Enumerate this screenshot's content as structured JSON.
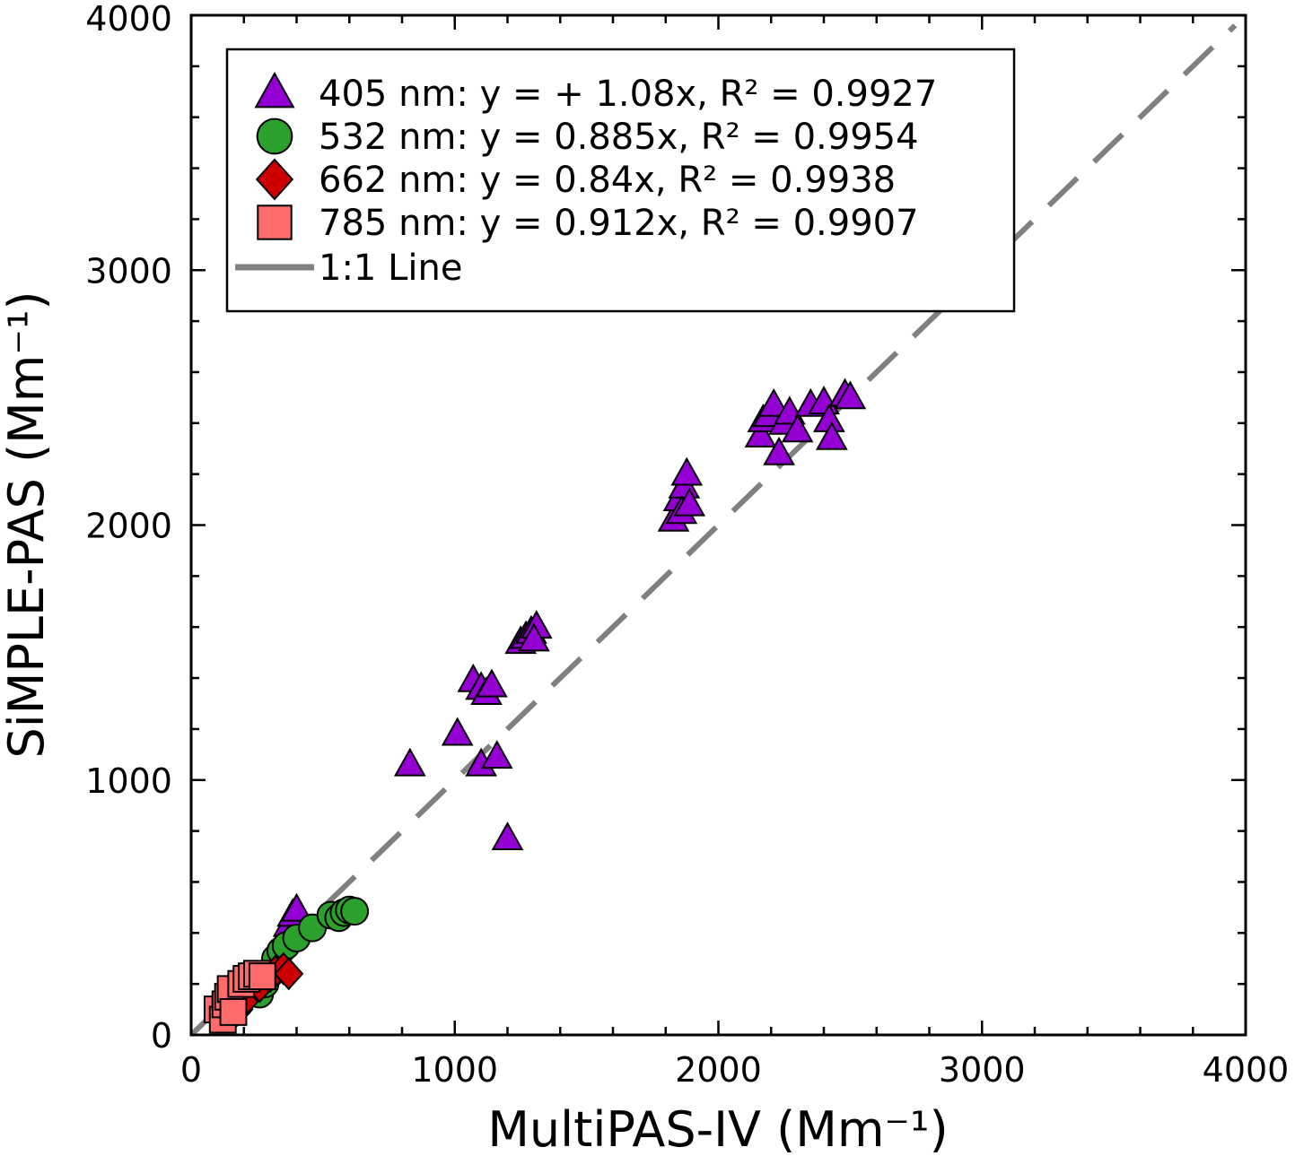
{
  "chart_data": {
    "type": "scatter",
    "xlabel": "MultiPAS-IV (Mm⁻¹)",
    "ylabel": "SiMPLE-PAS (Mm⁻¹)",
    "xlim": [
      0,
      4000
    ],
    "ylim": [
      0,
      4000
    ],
    "xticks": [
      "0",
      "1000",
      "2000",
      "3000",
      "4000"
    ],
    "yticks": [
      "0",
      "1000",
      "2000",
      "3000",
      "4000"
    ],
    "legend_position": "top-left",
    "grid": false,
    "series": [
      {
        "name": "405 nm: y = + 1.08x, R² = 0.9927",
        "marker": "triangle",
        "color": "#9400D3",
        "points": [
          [
            370,
            430
          ],
          [
            385,
            470
          ],
          [
            400,
            490
          ],
          [
            830,
            1060
          ],
          [
            1010,
            1180
          ],
          [
            1070,
            1390
          ],
          [
            1100,
            1360
          ],
          [
            1120,
            1340
          ],
          [
            1140,
            1370
          ],
          [
            1100,
            1060
          ],
          [
            1160,
            1090
          ],
          [
            1200,
            770
          ],
          [
            1250,
            1540
          ],
          [
            1270,
            1560
          ],
          [
            1290,
            1580
          ],
          [
            1310,
            1600
          ],
          [
            1300,
            1550
          ],
          [
            1830,
            2020
          ],
          [
            1850,
            2100
          ],
          [
            1870,
            2150
          ],
          [
            1880,
            2200
          ],
          [
            1860,
            2050
          ],
          [
            1890,
            2080
          ],
          [
            2160,
            2350
          ],
          [
            2170,
            2410
          ],
          [
            2190,
            2430
          ],
          [
            2210,
            2470
          ],
          [
            2230,
            2280
          ],
          [
            2250,
            2400
          ],
          [
            2270,
            2440
          ],
          [
            2300,
            2370
          ],
          [
            2350,
            2470
          ],
          [
            2400,
            2480
          ],
          [
            2420,
            2410
          ],
          [
            2430,
            2340
          ],
          [
            2480,
            2510
          ],
          [
            2500,
            2500
          ]
        ]
      },
      {
        "name": "532 nm: y = 0.885x, R² = 0.9954",
        "marker": "circle",
        "color": "#2CA02C",
        "points": [
          [
            260,
            160
          ],
          [
            280,
            200
          ],
          [
            300,
            240
          ],
          [
            320,
            300
          ],
          [
            340,
            330
          ],
          [
            360,
            350
          ],
          [
            400,
            380
          ],
          [
            460,
            420
          ],
          [
            530,
            470
          ],
          [
            560,
            460
          ],
          [
            580,
            480
          ],
          [
            600,
            490
          ],
          [
            620,
            485
          ]
        ]
      },
      {
        "name": "662 nm: y = 0.84x, R² = 0.9938",
        "marker": "diamond",
        "color": "#CC0000",
        "points": [
          [
            160,
            80
          ],
          [
            180,
            100
          ],
          [
            200,
            130
          ],
          [
            260,
            190
          ],
          [
            300,
            230
          ],
          [
            320,
            250
          ],
          [
            350,
            260
          ],
          [
            370,
            240
          ]
        ]
      },
      {
        "name": "785 nm: y = 0.912x, R² = 0.9907",
        "marker": "square",
        "color": "#FF6B6B",
        "points": [
          [
            100,
            100
          ],
          [
            120,
            60
          ],
          [
            130,
            120
          ],
          [
            140,
            150
          ],
          [
            150,
            180
          ],
          [
            160,
            90
          ],
          [
            190,
            200
          ],
          [
            210,
            220
          ],
          [
            230,
            230
          ],
          [
            250,
            240
          ],
          [
            270,
            230
          ]
        ]
      }
    ],
    "reference_line": {
      "name": "1:1 Line",
      "style": "dashed",
      "color": "#808080",
      "x": [
        0,
        4000
      ],
      "y": [
        0,
        4000
      ]
    }
  }
}
